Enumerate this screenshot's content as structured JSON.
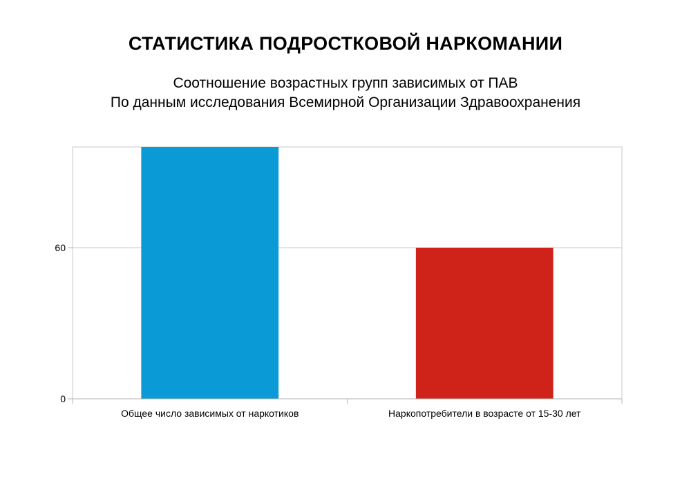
{
  "chart_data": {
    "type": "bar",
    "title": "СТАТИСТИКА ПОДРОСТКОВОЙ НАРКОМАНИИ",
    "subtitle": [
      "Соотношение возрастных групп зависимых от ПАВ",
      "По данным исследования Всемирной Организации Здравоохранения"
    ],
    "categories": [
      "Общее число зависимых от наркотиков",
      "Наркопотребители в возрасте от 15-30 лет"
    ],
    "values": [
      100,
      60
    ],
    "colors": [
      "#0a9ad6",
      "#cf2219"
    ],
    "yticks": [
      0,
      60
    ],
    "ylim": [
      0,
      100
    ],
    "grid": true,
    "legend": "none"
  }
}
